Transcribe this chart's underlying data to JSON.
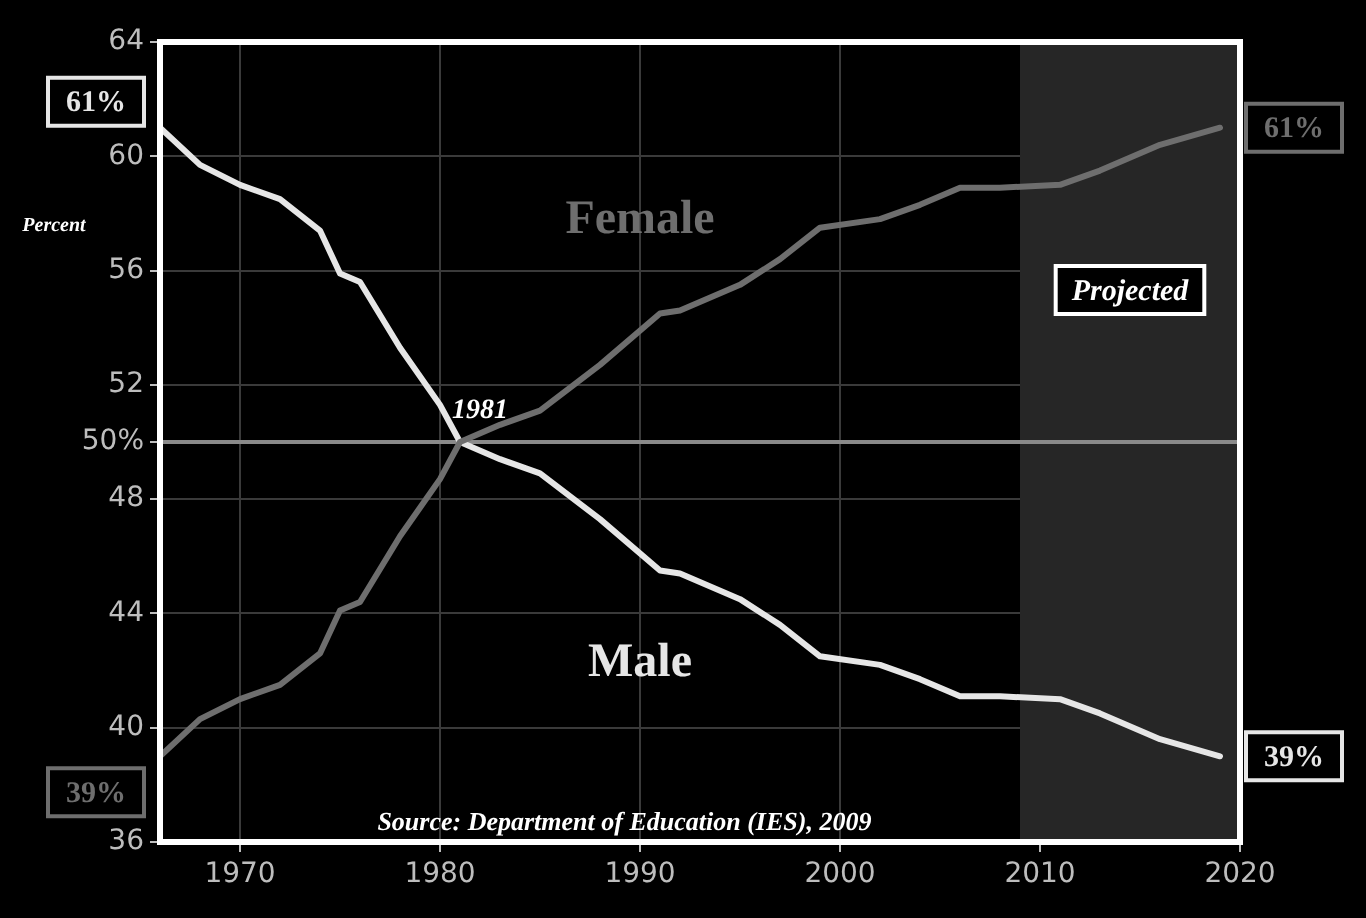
{
  "chart_data": {
    "type": "line",
    "ylabel": "Percent",
    "x": [
      1966,
      1968,
      1970,
      1972,
      1974,
      1975,
      1976,
      1978,
      1980,
      1981,
      1983,
      1985,
      1988,
      1991,
      1992,
      1995,
      1997,
      1999,
      2002,
      2004,
      2006,
      2008,
      2011,
      2013,
      2016,
      2019
    ],
    "series": [
      {
        "name": "Female",
        "color": "#6e6e6e",
        "values": [
          39,
          40.3,
          41.0,
          41.5,
          42.6,
          44.1,
          44.4,
          46.7,
          48.7,
          50,
          50.6,
          51.1,
          52.7,
          54.5,
          54.6,
          55.5,
          56.4,
          57.5,
          57.8,
          58.3,
          58.9,
          58.9,
          59.0,
          59.5,
          60.4,
          61
        ]
      },
      {
        "name": "Male",
        "color": "#e6e6e6",
        "values": [
          61,
          59.7,
          59.0,
          58.5,
          57.4,
          55.9,
          55.6,
          53.3,
          51.3,
          50,
          49.4,
          48.9,
          47.3,
          45.5,
          45.4,
          44.5,
          43.6,
          42.5,
          42.2,
          41.7,
          41.1,
          41.1,
          41.0,
          40.5,
          39.6,
          39
        ]
      }
    ],
    "xlim": [
      1966,
      2020
    ],
    "xticks": [
      1970,
      1980,
      1990,
      2000,
      2010,
      2020
    ],
    "ylim": [
      36,
      64
    ],
    "yticks": [
      36,
      40,
      44,
      48,
      {
        "value": 50,
        "label": "50%"
      },
      52,
      56,
      60,
      64
    ],
    "grid": true,
    "legend": false,
    "marker": "none",
    "line_style": "solid",
    "ref_lines": [
      {
        "axis": "y",
        "value": 50,
        "color": "#8a8a8a"
      }
    ],
    "bands": [
      {
        "axis": "x",
        "from": 2009,
        "to": 2020,
        "label": "Projected",
        "color": "#262626"
      }
    ],
    "annotations": [
      {
        "text": "61%",
        "x": 1966,
        "y": 61
      },
      {
        "text": "39%",
        "x": 1966,
        "y": 39
      },
      {
        "text": "61%",
        "x": 2019,
        "y": 61
      },
      {
        "text": "39%",
        "x": 2019,
        "y": 39
      },
      {
        "text": "1981",
        "x": 1981,
        "y": 50
      },
      "Source: Department of Education (IES), 2009"
    ]
  }
}
